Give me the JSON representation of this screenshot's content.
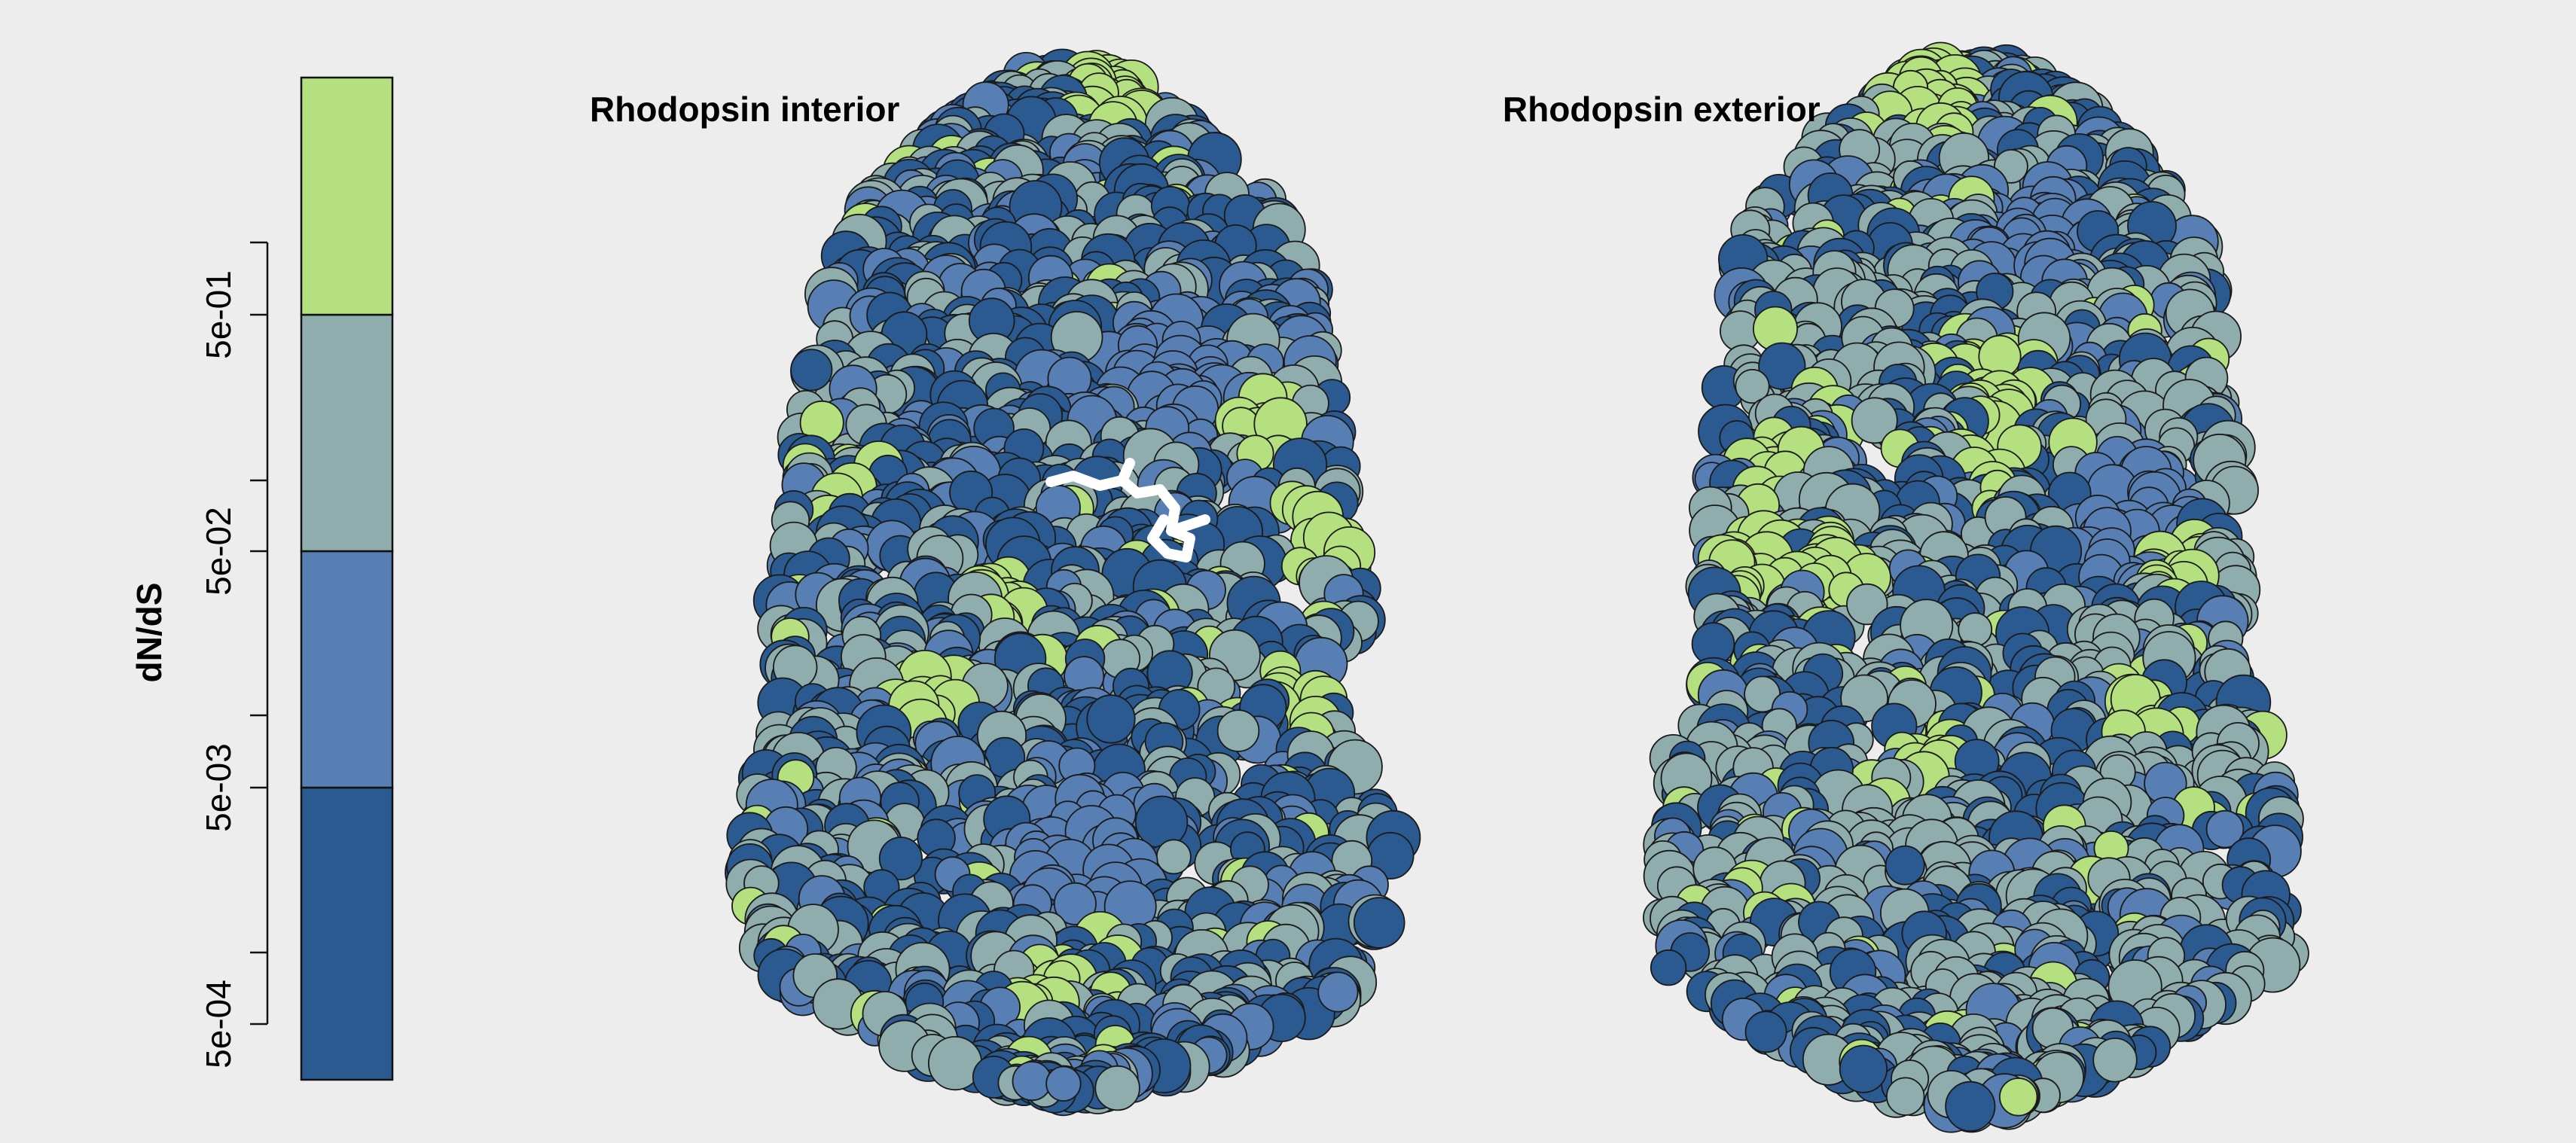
{
  "panels": {
    "interior_title": "Rhodopsin interior",
    "exterior_title": "Rhodopsin exterior"
  },
  "colorbar": {
    "title": "dN/dS",
    "tick_labels": [
      "5e-04",
      "5e-03",
      "5e-02",
      "5e-01"
    ],
    "bins": [
      {
        "color": "#2b5a91"
      },
      {
        "color": "#587fb4"
      },
      {
        "color": "#8fadad"
      },
      {
        "color": "#b4e07f"
      }
    ]
  },
  "ligand": {
    "color": "#ffffff"
  }
}
